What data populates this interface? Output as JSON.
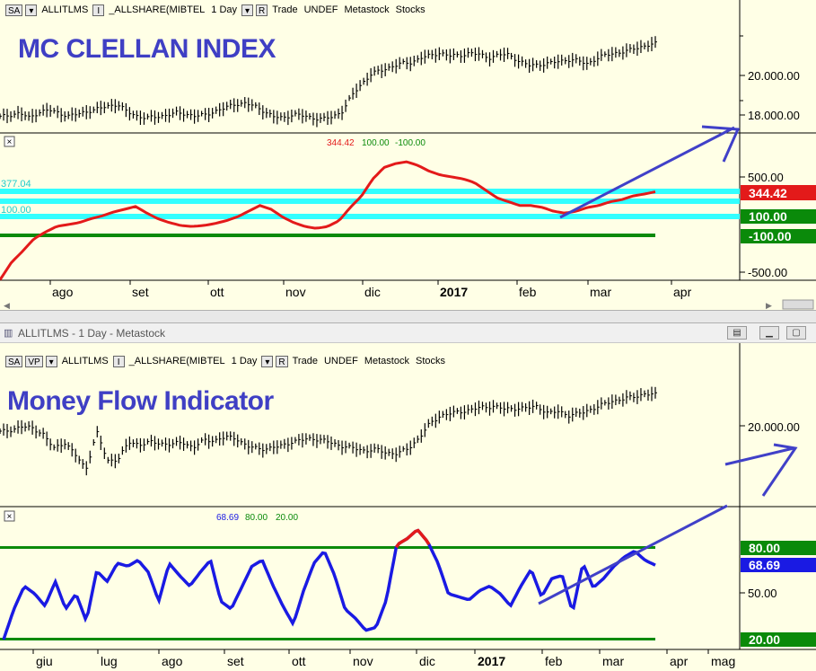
{
  "top": {
    "toolbar": {
      "sa": "SA",
      "symbol": "ALLITLMS",
      "i": "I",
      "compare": "_ALLSHARE(MIBTEL",
      "period": "1 Day",
      "r": "R",
      "trade": "Trade",
      "undef": "UNDEF",
      "source": "Metastock",
      "type": "Stocks"
    },
    "title": "MC CLELLAN INDEX",
    "indicator_readout": {
      "value": "344.42",
      "upper": "100.00",
      "lower": "-100.00"
    },
    "left_labels": [
      "377.04",
      "100.00"
    ],
    "price_axis": [
      "20.000.00",
      "18.000.00"
    ],
    "indicator_axis": [
      "500.00",
      "-500.00"
    ],
    "badges": [
      {
        "text": "344.42",
        "color": "#e31a1a"
      },
      {
        "text": "100.00",
        "color": "#0a8a0a"
      },
      {
        "text": "-100.00",
        "color": "#0a8a0a"
      }
    ],
    "months": [
      "ago",
      "set",
      "ott",
      "nov",
      "dic",
      "2017",
      "feb",
      "mar",
      "apr"
    ]
  },
  "bottom": {
    "window_title": "ALLITLMS - 1 Day - Metastock",
    "toolbar": {
      "sa": "SA",
      "vp": "VP",
      "symbol": "ALLITLMS",
      "i": "I",
      "compare": "_ALLSHARE(MIBTEL",
      "period": "1 Day",
      "r": "R",
      "trade": "Trade",
      "undef": "UNDEF",
      "source": "Metastock",
      "type": "Stocks"
    },
    "title": "Money Flow Indicator",
    "indicator_readout": {
      "value": "68.69",
      "upper": "80.00",
      "lower": "20.00"
    },
    "price_axis": [
      "20.000.00"
    ],
    "indicator_axis": [
      "50.00"
    ],
    "badges": [
      {
        "text": "80.00",
        "color": "#0a8a0a"
      },
      {
        "text": "68.69",
        "color": "#1a1ae3"
      },
      {
        "text": "20.00",
        "color": "#0a8a0a"
      }
    ],
    "months": [
      "giu",
      "lug",
      "ago",
      "set",
      "ott",
      "nov",
      "dic",
      "2017",
      "feb",
      "mar",
      "apr",
      "mag"
    ]
  },
  "chart_data": [
    {
      "type": "line",
      "title": "MC CLELLAN INDEX",
      "panel": "price",
      "series": [
        {
          "name": "ALLITLMS",
          "values": [
            17900,
            18000,
            18100,
            17850,
            18150,
            18250,
            18100,
            17950,
            18050,
            18200,
            18300,
            18450,
            18550,
            18150,
            17950,
            17850,
            17900,
            18000,
            18100,
            18050,
            17950,
            18000,
            18200,
            18350,
            18550,
            18600,
            18450,
            18200,
            17900,
            17850,
            18050,
            17950,
            17850,
            17800,
            17900,
            18200,
            19000,
            19600,
            20100,
            20250,
            20450,
            20600,
            20650,
            20900,
            21000,
            21150,
            21000,
            21000,
            21150,
            21050,
            20900,
            21050,
            21050,
            20750,
            20500,
            20550,
            20600,
            20700,
            20800,
            20750,
            20600,
            20850,
            21050,
            21150,
            21200,
            21400,
            21500,
            21600
          ]
        }
      ],
      "x_range": [
        "Jul 2016",
        "Mar 2017"
      ],
      "y_ticks": [
        20000,
        18000
      ]
    },
    {
      "type": "line",
      "panel": "indicator",
      "series": [
        {
          "name": "MC CLELLAN INDEX",
          "values": [
            -580,
            -400,
            -280,
            -150,
            -80,
            -20,
            0,
            20,
            60,
            90,
            130,
            160,
            190,
            120,
            60,
            20,
            -10,
            -20,
            -10,
            10,
            40,
            80,
            140,
            200,
            160,
            80,
            20,
            -20,
            -40,
            -20,
            40,
            180,
            300,
            480,
            600,
            640,
            660,
            620,
            560,
            520,
            500,
            480,
            440,
            360,
            280,
            240,
            200,
            200,
            180,
            140,
            120,
            140,
            180,
            200,
            240,
            260,
            300,
            320,
            344.42
          ]
        }
      ],
      "levels": [
        100,
        -100
      ],
      "y_ticks": [
        500,
        -500
      ],
      "last_value": 344.42
    },
    {
      "type": "line",
      "title": "Money Flow Indicator",
      "panel": "price",
      "series": [
        {
          "name": "ALLITLMS",
          "values": [
            19700,
            19800,
            19950,
            19900,
            19600,
            18900,
            19200,
            18600,
            17900,
            19700,
            18300,
            18400,
            19200,
            19100,
            19200,
            19150,
            19100,
            19200,
            18950,
            19300,
            19300,
            19450,
            19400,
            19000,
            18900,
            18900,
            19000,
            19200,
            19300,
            19400,
            19300,
            19150,
            19000,
            18900,
            18800,
            18850,
            18700,
            18650,
            18900,
            19400,
            20100,
            20500,
            20600,
            20700,
            20800,
            20900,
            20950,
            20800,
            20850,
            20850,
            20950,
            20600,
            20700,
            20500,
            20600,
            20800,
            21000,
            21200,
            21300,
            21400,
            21550,
            21500
          ]
        }
      ],
      "x_range": [
        "Jun 2016",
        "Mar 2017"
      ],
      "y_ticks": [
        20000
      ]
    },
    {
      "type": "line",
      "panel": "indicator",
      "series": [
        {
          "name": "Money Flow Indicator",
          "values": [
            20,
            40,
            55,
            50,
            42,
            58,
            40,
            50,
            32,
            65,
            58,
            70,
            68,
            72,
            64,
            45,
            70,
            62,
            55,
            64,
            72,
            45,
            40,
            54,
            68,
            72,
            56,
            42,
            30,
            52,
            70,
            78,
            62,
            40,
            34,
            26,
            28,
            46,
            82,
            86,
            92,
            84,
            70,
            50,
            48,
            46,
            52,
            55,
            50,
            42,
            55,
            66,
            48,
            60,
            62,
            38,
            70,
            54,
            60,
            68,
            74,
            78,
            72,
            68.69
          ]
        }
      ],
      "levels": [
        80,
        20
      ],
      "y_ticks": [
        50
      ],
      "last_value": 68.69
    }
  ]
}
